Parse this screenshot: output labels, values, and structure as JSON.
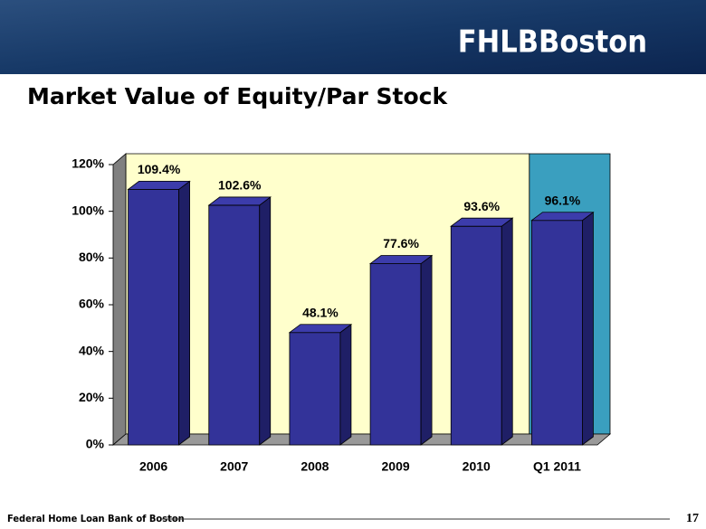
{
  "header": {
    "logo": "FHLBBoston"
  },
  "chart_data": {
    "type": "bar3d",
    "title": "Market Value of Equity/Par Stock",
    "categories": [
      "2006",
      "2007",
      "2008",
      "2009",
      "2010",
      "Q1 2011"
    ],
    "values": [
      109.4,
      102.6,
      48.1,
      77.6,
      93.6,
      96.1
    ],
    "value_labels": [
      "109.4%",
      "102.6%",
      "48.1%",
      "77.6%",
      "93.6%",
      "96.1%"
    ],
    "color": "#333399",
    "ylim": [
      0,
      120
    ],
    "yticks": [
      {
        "value": 0,
        "label": "0%"
      },
      {
        "value": 20,
        "label": "20%"
      },
      {
        "value": 40,
        "label": "40%"
      },
      {
        "value": 60,
        "label": "60%"
      },
      {
        "value": 80,
        "label": "80%"
      },
      {
        "value": 100,
        "label": "100%"
      },
      {
        "value": 120,
        "label": "120%"
      }
    ]
  },
  "footer": {
    "text": "Federal Home Loan Bank of Boston",
    "page": "17"
  }
}
